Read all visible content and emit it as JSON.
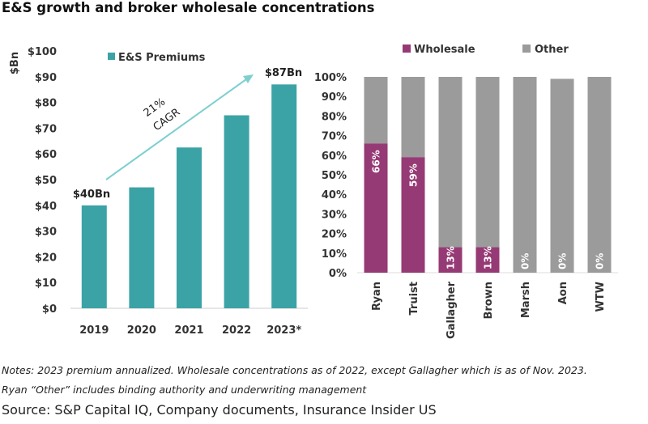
{
  "title": "E&S growth and broker wholesale concentrations",
  "chart_data": [
    {
      "type": "bar",
      "ylabel": "$Bn",
      "ylim": [
        0,
        100
      ],
      "yticks": [
        "$0",
        "$10",
        "$20",
        "$30",
        "$40",
        "$50",
        "$60",
        "$70",
        "$80",
        "$90",
        "$100"
      ],
      "categories": [
        "2019",
        "2020",
        "2021",
        "2022",
        "2023*"
      ],
      "series": [
        {
          "name": "E&S Premiums",
          "values": [
            40,
            47,
            62.5,
            75,
            87
          ],
          "color": "#3ba3a5"
        }
      ],
      "annotations": {
        "start_label": "$40Bn",
        "end_label": "$87Bn",
        "arrow_text": [
          "21%",
          "CAGR"
        ]
      },
      "legend": "top",
      "grid": false
    },
    {
      "type": "bar",
      "stacked": true,
      "ylim": [
        0,
        100
      ],
      "yticks": [
        "0%",
        "10%",
        "20%",
        "30%",
        "40%",
        "50%",
        "60%",
        "70%",
        "80%",
        "90%",
        "100%"
      ],
      "categories": [
        "Ryan",
        "Truist",
        "Gallagher",
        "Brown",
        "Marsh",
        "Aon",
        "WTW"
      ],
      "series": [
        {
          "name": "Wholesale",
          "values": [
            66,
            59,
            13,
            13,
            0,
            0,
            0
          ],
          "color": "#963a75"
        },
        {
          "name": "Other",
          "values": [
            34,
            41,
            87,
            87,
            100,
            99,
            100
          ],
          "color": "#9b9b9b"
        }
      ],
      "data_labels": [
        "66%",
        "59%",
        "13%",
        "13%",
        "0%",
        "0%",
        "0%"
      ],
      "legend": "top",
      "grid": false
    }
  ],
  "notes": [
    "Notes: 2023 premium annualized. Wholesale concentrations as of 2022, except Gallagher which is as of Nov. 2023.",
    "Ryan “Other” includes binding authority and underwriting management"
  ],
  "source": "Source: S&P Capital IQ, Company documents, Insurance Insider US"
}
